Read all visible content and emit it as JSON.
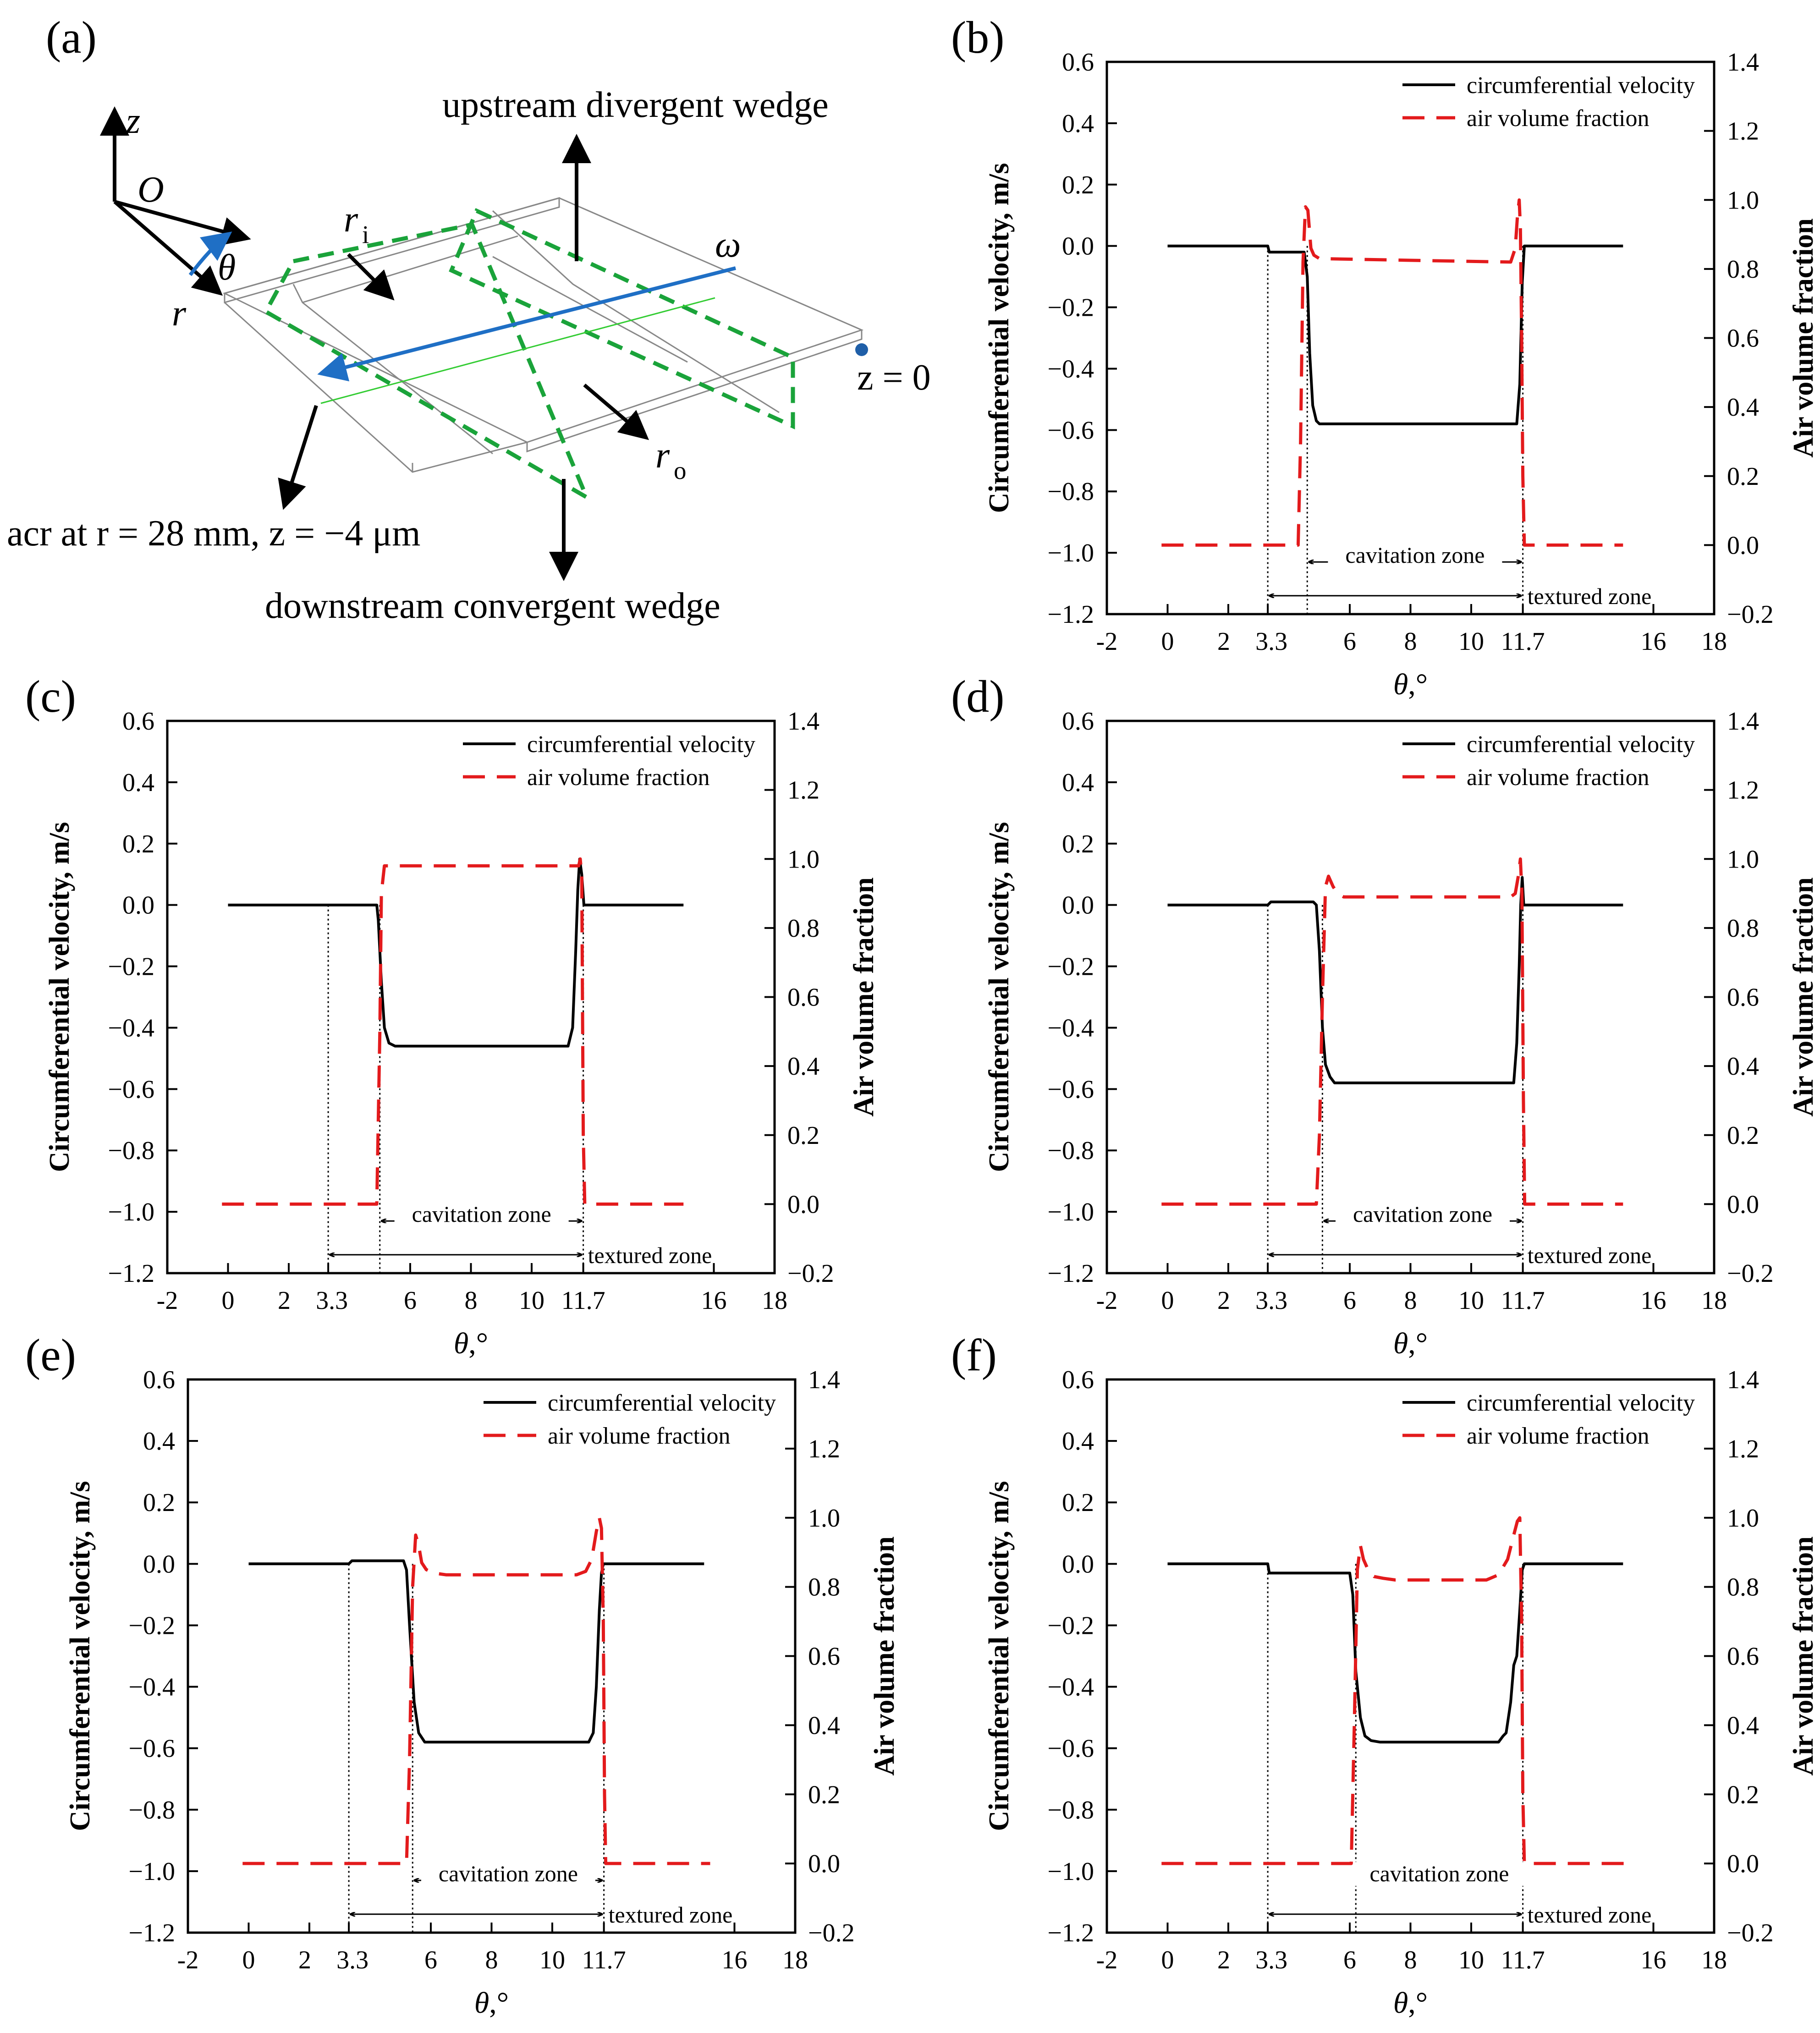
{
  "panel_a": {
    "label": "(a)",
    "axis_z": "z",
    "origin": "O",
    "axis_r": "r",
    "angle": "θ",
    "omega": "ω",
    "r_inner": "r",
    "r_inner_sub": "i",
    "r_outer": "r",
    "r_outer_sub": "o",
    "z_zero": "z = 0",
    "upstream": "upstream divergent wedge",
    "downstream": "downstream convergent wedge",
    "acr": "acr at r = 28 mm, z = −4 μm",
    "colors": {
      "arc": "#1f6fc5",
      "dashed_box": "#1aa33a",
      "thin_line": "#33cc33",
      "outline": "#888888"
    }
  },
  "chart_data": [
    {
      "panel": "(b)",
      "type": "line",
      "xlabel": "θ,°",
      "ylabel": "Circumferential velocity, m/s",
      "y2label": "Air volume fraction",
      "xlim": [
        -2,
        18
      ],
      "ylim": [
        -1.2,
        0.6
      ],
      "y2lim": [
        -0.2,
        1.4
      ],
      "xticks": [
        "-2",
        "0",
        "2",
        "3.3",
        "6",
        "8",
        "10",
        "11.7",
        "16",
        "18"
      ],
      "yticks": [
        "0.6",
        "0.4",
        "0.2",
        "0.0",
        "-0.2",
        "-0.4",
        "-0.6",
        "-0.8",
        "-1.0",
        "-1.2"
      ],
      "y2ticks": [
        "1.4",
        "1.2",
        "1.0",
        "0.8",
        "0.6",
        "0.4",
        "0.2",
        "0.0",
        "-0.2"
      ],
      "cav_start": 4.6,
      "texture_start": 3.3,
      "texture_end": 11.7,
      "cavitation_label": "cavitation zone",
      "textured_label": "textured zone",
      "series": [
        {
          "name": "circumferential velocity",
          "axis": "left",
          "color": "#000000",
          "x": [
            0,
            3.3,
            3.35,
            4.5,
            4.6,
            4.68,
            4.78,
            4.9,
            5.0,
            11.5,
            11.6,
            11.68,
            11.75,
            15
          ],
          "y": [
            0,
            0,
            -0.02,
            -0.02,
            -0.1,
            -0.35,
            -0.52,
            -0.57,
            -0.58,
            -0.58,
            -0.45,
            -0.12,
            0,
            0
          ]
        },
        {
          "name": "air volume fraction",
          "axis": "right",
          "color": "#e31a1c",
          "x": [
            -0.2,
            4.3,
            4.38,
            4.46,
            4.54,
            4.62,
            4.72,
            4.82,
            5.0,
            8.0,
            11.3,
            11.45,
            11.52,
            11.58,
            11.62,
            11.66,
            11.7,
            11.75,
            15.0
          ],
          "y": [
            0,
            0,
            0.3,
            0.82,
            0.98,
            0.97,
            0.86,
            0.84,
            0.83,
            0.825,
            0.82,
            0.86,
            0.95,
            1.0,
            0.92,
            0.6,
            0.2,
            0,
            0
          ]
        }
      ]
    },
    {
      "panel": "(c)",
      "type": "line",
      "xlabel": "θ,°",
      "ylabel": "Circumferential velocity, m/s",
      "y2label": "Air volume fraction",
      "xlim": [
        -2,
        18
      ],
      "ylim": [
        -1.2,
        0.6
      ],
      "y2lim": [
        -0.2,
        1.4
      ],
      "xticks": [
        "-2",
        "0",
        "2",
        "3.3",
        "6",
        "8",
        "10",
        "11.7",
        "16",
        "18"
      ],
      "yticks": [
        "0.6",
        "0.4",
        "0.2",
        "0.0",
        "-0.2",
        "-0.4",
        "-0.6",
        "-0.8",
        "-1.0",
        "-1.2"
      ],
      "y2ticks": [
        "1.4",
        "1.2",
        "1.0",
        "0.8",
        "0.6",
        "0.4",
        "0.2",
        "0.0",
        "-0.2"
      ],
      "cav_start": 5.0,
      "texture_start": 3.3,
      "texture_end": 11.7,
      "cavitation_label": "cavitation zone",
      "textured_label": "textured zone",
      "series": [
        {
          "name": "circumferential velocity",
          "axis": "left",
          "color": "#000000",
          "x": [
            0,
            4.9,
            4.95,
            5.05,
            5.15,
            5.3,
            5.5,
            11.2,
            11.35,
            11.45,
            11.52,
            11.58,
            11.65,
            11.72,
            15
          ],
          "y": [
            0,
            0,
            -0.05,
            -0.25,
            -0.4,
            -0.45,
            -0.46,
            -0.46,
            -0.4,
            -0.15,
            0.05,
            0.15,
            0.1,
            0,
            0
          ]
        },
        {
          "name": "air volume fraction",
          "axis": "right",
          "color": "#e31a1c",
          "x": [
            -0.2,
            4.9,
            5.0,
            5.05,
            5.15,
            5.25,
            11.55,
            11.6,
            11.65,
            11.7,
            11.75,
            15.0
          ],
          "y": [
            0,
            0,
            0.5,
            0.9,
            0.98,
            0.98,
            0.98,
            1.0,
            0.95,
            0.2,
            0,
            0
          ]
        }
      ]
    },
    {
      "panel": "(d)",
      "type": "line",
      "xlabel": "θ,°",
      "ylabel": "Circumferential velocity, m/s",
      "y2label": "Air volume fraction",
      "xlim": [
        -2,
        18
      ],
      "ylim": [
        -1.2,
        0.6
      ],
      "y2lim": [
        -0.2,
        1.4
      ],
      "xticks": [
        "-2",
        "0",
        "2",
        "3.3",
        "6",
        "8",
        "10",
        "11.7",
        "16",
        "18"
      ],
      "yticks": [
        "0.6",
        "0.4",
        "0.2",
        "0.0",
        "-0.2",
        "-0.4",
        "-0.6",
        "-0.8",
        "-1.0",
        "-1.2"
      ],
      "y2ticks": [
        "1.4",
        "1.2",
        "1.0",
        "0.8",
        "0.6",
        "0.4",
        "0.2",
        "0.0",
        "-0.2"
      ],
      "cav_start": 5.1,
      "texture_start": 3.3,
      "texture_end": 11.7,
      "cavitation_label": "cavitation zone",
      "textured_label": "textured zone",
      "series": [
        {
          "name": "circumferential velocity",
          "axis": "left",
          "color": "#000000",
          "x": [
            0,
            3.3,
            3.4,
            4.8,
            4.9,
            5.0,
            5.1,
            5.2,
            5.35,
            5.5,
            11.4,
            11.5,
            11.58,
            11.63,
            11.68,
            11.73,
            15
          ],
          "y": [
            0,
            0,
            0.01,
            0.01,
            0,
            -0.15,
            -0.4,
            -0.52,
            -0.56,
            -0.58,
            -0.58,
            -0.45,
            -0.2,
            0.0,
            0.09,
            0,
            0
          ]
        },
        {
          "name": "air volume fraction",
          "axis": "right",
          "color": "#e31a1c",
          "x": [
            -0.2,
            4.9,
            5.0,
            5.1,
            5.2,
            5.3,
            5.45,
            5.6,
            5.8,
            6.2,
            11.3,
            11.45,
            11.55,
            11.62,
            11.67,
            11.72,
            11.76,
            15.0
          ],
          "y": [
            0,
            0,
            0.2,
            0.6,
            0.92,
            0.95,
            0.92,
            0.9,
            0.89,
            0.89,
            0.89,
            0.9,
            0.95,
            1.0,
            0.9,
            0.3,
            0,
            0
          ]
        }
      ]
    },
    {
      "panel": "(e)",
      "type": "line",
      "xlabel": "θ,°",
      "ylabel": "Circumferential velocity, m/s",
      "y2label": "Air volume fraction",
      "xlim": [
        -2,
        18
      ],
      "ylim": [
        -1.2,
        0.6
      ],
      "y2lim": [
        -0.2,
        1.4
      ],
      "xticks": [
        "-2",
        "0",
        "2",
        "3.3",
        "6",
        "8",
        "10",
        "11.7",
        "16",
        "18"
      ],
      "yticks": [
        "0.6",
        "0.4",
        "0.2",
        "0.0",
        "-0.2",
        "-0.4",
        "-0.6",
        "-0.8",
        "-1.0",
        "-1.2"
      ],
      "y2ticks": [
        "1.4",
        "1.2",
        "1.0",
        "0.8",
        "0.6",
        "0.4",
        "0.2",
        "0.0",
        "-0.2"
      ],
      "cav_start": 5.4,
      "texture_start": 3.3,
      "texture_end": 11.7,
      "cavitation_label": "cavitation zone",
      "textured_label": "textured zone",
      "series": [
        {
          "name": "circumferential velocity",
          "axis": "left",
          "color": "#000000",
          "x": [
            0,
            3.3,
            3.4,
            5.1,
            5.2,
            5.3,
            5.45,
            5.6,
            5.8,
            6.0,
            11.2,
            11.35,
            11.45,
            11.55,
            11.62,
            11.68,
            11.75,
            15
          ],
          "y": [
            0,
            0,
            0.01,
            0.01,
            -0.02,
            -0.2,
            -0.45,
            -0.55,
            -0.58,
            -0.58,
            -0.58,
            -0.55,
            -0.4,
            -0.15,
            -0.03,
            0,
            0,
            0
          ]
        },
        {
          "name": "air volume fraction",
          "axis": "right",
          "color": "#e31a1c",
          "x": [
            -0.2,
            5.2,
            5.3,
            5.4,
            5.5,
            5.6,
            5.7,
            5.85,
            6.1,
            6.5,
            10.8,
            11.1,
            11.3,
            11.45,
            11.55,
            11.62,
            11.68,
            11.72,
            11.76,
            15.2
          ],
          "y": [
            0,
            0,
            0.3,
            0.8,
            0.95,
            0.92,
            0.87,
            0.85,
            0.84,
            0.835,
            0.835,
            0.845,
            0.88,
            0.96,
            1.0,
            0.97,
            0.7,
            0.2,
            0,
            0
          ]
        }
      ]
    },
    {
      "panel": "(f)",
      "type": "line",
      "xlabel": "θ,°",
      "ylabel": "Circumferential velocity, m/s",
      "y2label": "Air volume fraction",
      "xlim": [
        -2,
        18
      ],
      "ylim": [
        -1.2,
        0.6
      ],
      "y2lim": [
        -0.2,
        1.4
      ],
      "xticks": [
        "-2",
        "0",
        "2",
        "3.3",
        "6",
        "8",
        "10",
        "11.7",
        "16",
        "18"
      ],
      "yticks": [
        "0.6",
        "0.4",
        "0.2",
        "0.0",
        "-0.2",
        "-0.4",
        "-0.6",
        "-0.8",
        "-1.0",
        "-1.2"
      ],
      "y2ticks": [
        "1.4",
        "1.2",
        "1.0",
        "0.8",
        "0.6",
        "0.4",
        "0.2",
        "0.0",
        "-0.2"
      ],
      "cav_start": 6.2,
      "texture_start": 3.3,
      "texture_end": 11.7,
      "cavitation_label": "cavitation zone",
      "textured_label": "textured zone",
      "series": [
        {
          "name": "circumferential velocity",
          "axis": "left",
          "color": "#000000",
          "x": [
            0,
            3.3,
            3.35,
            5.9,
            6.0,
            6.1,
            6.2,
            6.35,
            6.5,
            6.7,
            7.0,
            10.9,
            11.05,
            11.15,
            11.3,
            11.4,
            11.5,
            11.6,
            11.68,
            11.75,
            15
          ],
          "y": [
            0,
            0,
            -0.03,
            -0.03,
            -0.03,
            -0.1,
            -0.35,
            -0.5,
            -0.56,
            -0.575,
            -0.58,
            -0.58,
            -0.56,
            -0.55,
            -0.45,
            -0.33,
            -0.3,
            -0.15,
            -0.02,
            0,
            0
          ]
        },
        {
          "name": "air volume fraction",
          "axis": "right",
          "color": "#e31a1c",
          "x": [
            -0.2,
            6.05,
            6.15,
            6.25,
            6.35,
            6.45,
            6.6,
            6.8,
            7.1,
            7.5,
            10.5,
            10.9,
            11.2,
            11.4,
            11.52,
            11.6,
            11.66,
            11.7,
            11.75,
            15.2
          ],
          "y": [
            0,
            0,
            0.4,
            0.85,
            0.92,
            0.88,
            0.85,
            0.83,
            0.825,
            0.82,
            0.82,
            0.835,
            0.88,
            0.95,
            0.99,
            1.0,
            0.7,
            0.2,
            0,
            0
          ]
        }
      ]
    }
  ]
}
